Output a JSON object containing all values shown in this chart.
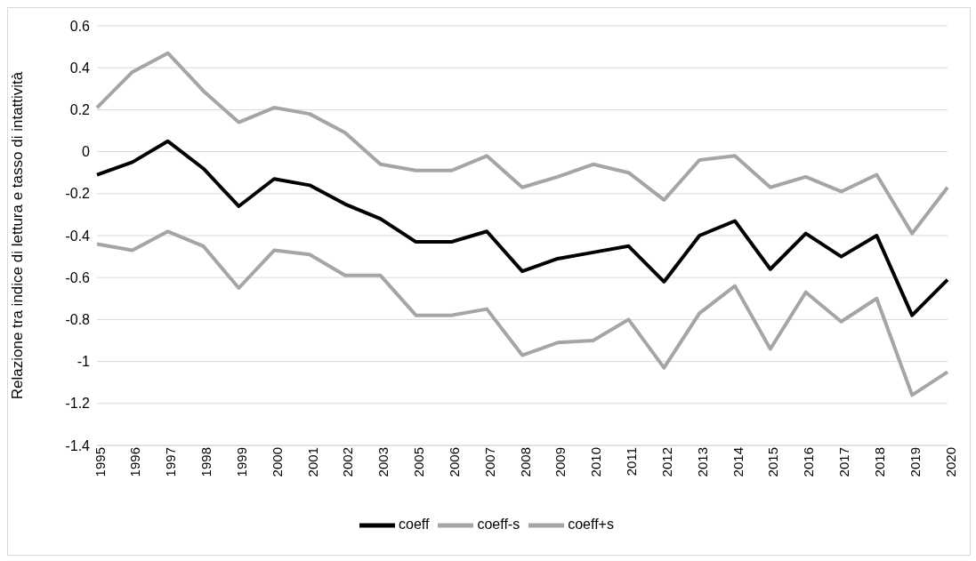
{
  "chart_data": {
    "type": "line",
    "ylabel": "Relazione tra indice di lettura e tasso di intattività",
    "categories": [
      "1995",
      "1996",
      "1997",
      "1998",
      "1999",
      "2000",
      "2001",
      "2002",
      "2003",
      "2005",
      "2006",
      "2007",
      "2008",
      "2009",
      "2010",
      "2011",
      "2012",
      "2013",
      "2014",
      "2015",
      "2016",
      "2017",
      "2018",
      "2019",
      "2020"
    ],
    "series": [
      {
        "name": "coeff",
        "color": "#000000",
        "values": [
          -0.11,
          -0.05,
          0.05,
          -0.08,
          -0.26,
          -0.13,
          -0.16,
          -0.25,
          -0.32,
          -0.43,
          -0.43,
          -0.38,
          -0.57,
          -0.51,
          -0.48,
          -0.45,
          -0.62,
          -0.4,
          -0.33,
          -0.56,
          -0.39,
          -0.5,
          -0.4,
          -0.78,
          -0.61
        ]
      },
      {
        "name": "coeff-s",
        "color": "#a5a5a5",
        "values": [
          -0.44,
          -0.47,
          -0.38,
          -0.45,
          -0.65,
          -0.47,
          -0.49,
          -0.59,
          -0.59,
          -0.78,
          -0.78,
          -0.75,
          -0.97,
          -0.91,
          -0.9,
          -0.8,
          -1.03,
          -0.77,
          -0.64,
          -0.94,
          -0.67,
          -0.81,
          -0.7,
          -1.16,
          -1.05
        ]
      },
      {
        "name": "coeff+s",
        "color": "#a5a5a5",
        "values": [
          0.21,
          0.38,
          0.47,
          0.29,
          0.14,
          0.21,
          0.18,
          0.09,
          -0.06,
          -0.09,
          -0.09,
          -0.02,
          -0.17,
          -0.12,
          -0.06,
          -0.1,
          -0.23,
          -0.04,
          -0.02,
          -0.17,
          -0.12,
          -0.19,
          -0.11,
          -0.39,
          -0.17
        ]
      }
    ],
    "ylim": [
      -1.4,
      0.6
    ],
    "yticks": [
      -1.4,
      -1.2,
      -1,
      -0.8,
      -0.6,
      -0.4,
      -0.2,
      0,
      0.2,
      0.4,
      0.6
    ],
    "grid": "y",
    "legend": "bottom",
    "marker": "none",
    "line_style": "solid"
  }
}
